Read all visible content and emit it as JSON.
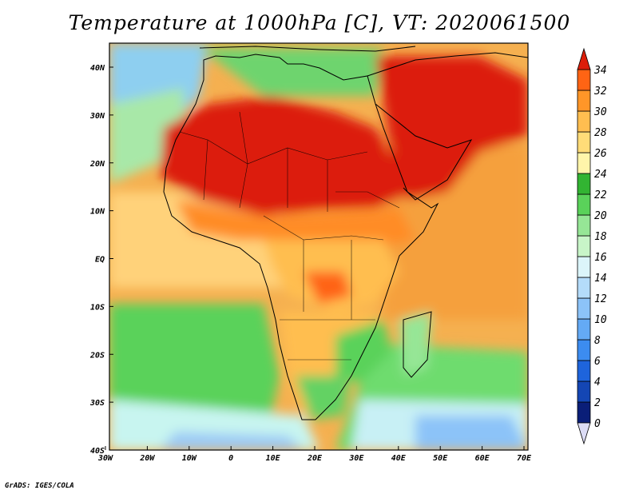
{
  "title": "Temperature at 1000hPa [C], VT: 2020061500",
  "credit": "GrADS: IGES/COLA",
  "map": {
    "x_ticks": [
      "30W",
      "20W",
      "10W",
      "0",
      "10E",
      "20E",
      "30E",
      "40E",
      "50E",
      "60E",
      "70E"
    ],
    "y_ticks": [
      "40N",
      "30N",
      "20N",
      "10N",
      "EQ",
      "10S",
      "20S",
      "30S",
      "40S"
    ]
  },
  "colorbar": {
    "labels": [
      "0",
      "2",
      "4",
      "6",
      "8",
      "10",
      "12",
      "14",
      "16",
      "18",
      "20",
      "22",
      "24",
      "26",
      "28",
      "30",
      "32",
      "34"
    ],
    "colors": [
      "#0a1e78",
      "#1446b4",
      "#1e64dc",
      "#3c8cf0",
      "#64aaf5",
      "#8cc3f8",
      "#b4dcfa",
      "#dcf5fa",
      "#c8f5c8",
      "#96e696",
      "#5ad25a",
      "#32b432",
      "#fff5aa",
      "#ffdc78",
      "#ffbe50",
      "#ff9628",
      "#ff6414",
      "#dc1e0a"
    ]
  },
  "colors": {
    "ocean_base": "#f5a04b",
    "land_outline": "#000000"
  }
}
